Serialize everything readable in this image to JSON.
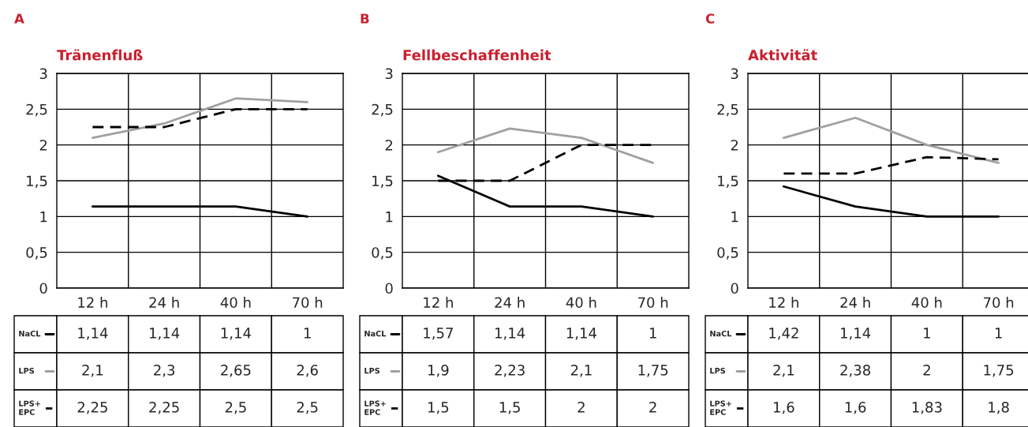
{
  "chart_data": [
    {
      "type": "line",
      "title": "Tränenfluß",
      "annotations": [
        "A"
      ],
      "categories": [
        "12 h",
        "24 h",
        "40 h",
        "70 h"
      ],
      "ylim": [
        0,
        3
      ],
      "yticks": [
        0,
        {
          "value": 0.5,
          "label": "0,5"
        },
        1,
        {
          "value": 1.5,
          "label": "1,5"
        },
        2,
        {
          "value": 2.5,
          "label": "2,5"
        },
        3
      ],
      "grid": true,
      "legend": "bottom left",
      "series": [
        {
          "name": "NaCL",
          "color": "#000000",
          "line_style": "solid",
          "values": [
            1.14,
            1.14,
            1.14,
            1
          ],
          "value_labels": [
            "1,14",
            "1,14",
            "1,14",
            "1"
          ]
        },
        {
          "name": "LPS",
          "color": "#a0a0a0",
          "line_style": "solid",
          "values": [
            2.1,
            2.3,
            2.65,
            2.6
          ],
          "value_labels": [
            "2,1",
            "2,3",
            "2,65",
            "2,6"
          ]
        },
        {
          "name": "LPS+ EPC",
          "color": "#000000",
          "line_style": "dashed",
          "values": [
            2.25,
            2.25,
            2.5,
            2.5
          ],
          "value_labels": [
            "2,25",
            "2,25",
            "2,5",
            "2,5"
          ]
        }
      ]
    },
    {
      "type": "line",
      "title": "Fellbeschaffenheit",
      "annotations": [
        "B"
      ],
      "categories": [
        "12 h",
        "24 h",
        "40 h",
        "70 h"
      ],
      "ylim": [
        0,
        3
      ],
      "yticks": [
        0,
        {
          "value": 0.5,
          "label": "0,5"
        },
        1,
        {
          "value": 1.5,
          "label": "1,5"
        },
        2,
        {
          "value": 2.5,
          "label": "2,5"
        },
        3
      ],
      "grid": true,
      "legend": "bottom left",
      "series": [
        {
          "name": "NaCL",
          "color": "#000000",
          "line_style": "solid",
          "values": [
            1.57,
            1.14,
            1.14,
            1
          ],
          "value_labels": [
            "1,57",
            "1,14",
            "1,14",
            "1"
          ]
        },
        {
          "name": "LPS",
          "color": "#a0a0a0",
          "line_style": "solid",
          "values": [
            1.9,
            2.23,
            2.1,
            1.75
          ],
          "value_labels": [
            "1,9",
            "2,23",
            "2,1",
            "1,75"
          ]
        },
        {
          "name": "LPS+ EPC",
          "color": "#000000",
          "line_style": "dashed",
          "values": [
            1.5,
            1.5,
            2,
            2
          ],
          "value_labels": [
            "1,5",
            "1,5",
            "2",
            "2"
          ]
        }
      ]
    },
    {
      "type": "line",
      "title": "Aktivität",
      "annotations": [
        "C"
      ],
      "categories": [
        "12 h",
        "24 h",
        "40 h",
        "70 h"
      ],
      "ylim": [
        0,
        3
      ],
      "yticks": [
        0,
        {
          "value": 0.5,
          "label": "0,5"
        },
        1,
        {
          "value": 1.5,
          "label": "1,5"
        },
        2,
        {
          "value": 2.5,
          "label": "2,5"
        },
        3
      ],
      "grid": true,
      "legend": "bottom left",
      "series": [
        {
          "name": "NaCL",
          "color": "#000000",
          "line_style": "solid",
          "values": [
            1.42,
            1.14,
            1,
            1
          ],
          "value_labels": [
            "1,42",
            "1,14",
            "1",
            "1"
          ]
        },
        {
          "name": "LPS",
          "color": "#a0a0a0",
          "line_style": "solid",
          "values": [
            2.1,
            2.38,
            2,
            1.75
          ],
          "value_labels": [
            "2,1",
            "2,38",
            "2",
            "1,75"
          ]
        },
        {
          "name": "LPS+ EPC",
          "color": "#000000",
          "line_style": "dashed",
          "values": [
            1.6,
            1.6,
            1.83,
            1.8
          ],
          "value_labels": [
            "1,6",
            "1,6",
            "1,83",
            "1,8"
          ]
        }
      ]
    }
  ]
}
